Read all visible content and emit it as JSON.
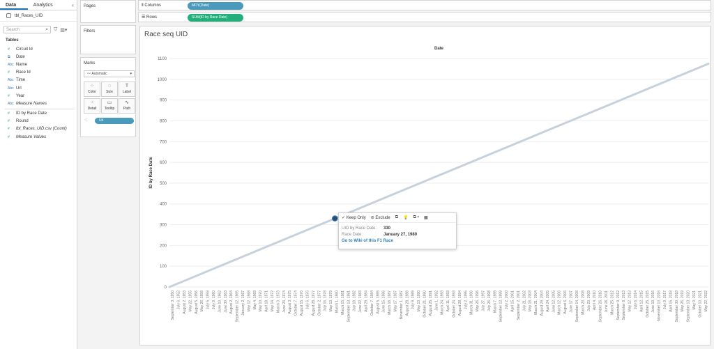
{
  "left_pane": {
    "tabs": [
      "Data",
      "Analytics"
    ],
    "collapse_glyph": "‹",
    "datasource": "tbl_Races_UID",
    "search_placeholder": "Search",
    "tables_heading": "Tables",
    "fields": [
      {
        "type": "#",
        "name": "Circuit Id",
        "italic": false
      },
      {
        "type": "⧉",
        "name": "Date",
        "italic": false
      },
      {
        "type": "Abc",
        "name": "Name",
        "italic": false
      },
      {
        "type": "#",
        "name": "Race Id",
        "italic": false
      },
      {
        "type": "Abc",
        "name": "Time",
        "italic": false
      },
      {
        "type": "Abc",
        "name": "Url",
        "italic": false
      },
      {
        "type": "#",
        "name": "Year",
        "italic": false
      },
      {
        "type": "Abc",
        "name": "Measure Names",
        "italic": true
      }
    ],
    "measures": [
      {
        "type": "#",
        "name": "ID by Race Date",
        "italic": false
      },
      {
        "type": "#",
        "name": "Round",
        "italic": false
      },
      {
        "type": "#",
        "name": "tbl_Races_UID.csv (Count)",
        "italic": true
      },
      {
        "type": "#",
        "name": "Measure Values",
        "italic": true
      }
    ]
  },
  "cards": {
    "pages": "Pages",
    "filters": "Filters",
    "marks": "Marks",
    "mark_type": "Automatic",
    "buttons": [
      "Color",
      "Size",
      "Label",
      "Detail",
      "Tooltip",
      "Path"
    ],
    "url_pill": "Url"
  },
  "shelves": {
    "columns_label": "Columns",
    "columns_pill": "MDY(Date)",
    "rows_label": "Rows",
    "rows_pill": "SUM(ID by Race Date)"
  },
  "view": {
    "title": "Race seq UID"
  },
  "tooltip": {
    "actions": [
      "✓ Keep Only",
      "⊘ Exclude",
      "⧉",
      "💡",
      "⧉ ▾",
      "▦"
    ],
    "field1_key": "UID by Race Date:",
    "field1_val": "330",
    "field2_key": "Race Date:",
    "field2_val": "January 27, 1980",
    "link": "Go to Wiki of this F1 Race"
  },
  "chart_data": {
    "type": "line",
    "title": "Date",
    "ylabel": "ID by Race Date",
    "xlabel": "",
    "y_ticks": [
      0,
      100,
      200,
      300,
      400,
      500,
      600,
      700,
      800,
      900,
      1000,
      1100
    ],
    "ylim": [
      0,
      1100
    ],
    "series": [
      {
        "values_x_index": [
          0,
          99
        ],
        "values_y": [
          0,
          1075
        ]
      }
    ],
    "x_tick_labels": [
      "September 3, 1950",
      "July 6, 1952",
      "August 2, 1953",
      "May 22, 1955",
      "August 5, 1956",
      "May 26, 1958",
      "July 5, 1959",
      "July 9, 1960",
      "June 10, 1962",
      "June 30, 1963",
      "August 2, 1964",
      "September 12, 1965",
      "January 2, 1967",
      "May 12, 1968",
      "May 4, 1969",
      "May 10, 1970",
      "April 18, 1971",
      "May 14, 1972",
      "March 3, 1973",
      "June 23, 1974",
      "August 3, 1975",
      "October 7, 1974",
      "August 15, 1976",
      "July 6, 1976",
      "August 28, 1977",
      "October 2, 1977",
      "July 16, 1978",
      "May 13, 1979",
      "March 1, 1980",
      "March 15, 1981",
      "September 13, 1981",
      "July 18, 1982",
      "June 22, 1983",
      "April 29, 1984",
      "October 7, 1984",
      "August 5, 1985",
      "June 15, 1986",
      "March 18, 1987",
      "May 17, 1987",
      "November 1, 1987",
      "August 28, 1988",
      "July 9, 1989",
      "May 13, 1990",
      "October 21, 1990",
      "August 25, 1991",
      "June 1, 1992",
      "March 24, 1993",
      "April 11, 1993",
      "October 24, 1993",
      "August 28, 1994",
      "July 2, 1995",
      "March 31, 1996",
      "May 26, 1996",
      "July 27, 1997",
      "July 26, 1998",
      "March 7, 1999",
      "September 12, 1999",
      "July 2, 2000",
      "April 15, 2001",
      "September 2, 2001",
      "July 21, 2002",
      "May 18, 2003",
      "March 21, 2004",
      "August 29, 2004",
      "April 24, 2005",
      "June 12, 2005",
      "March 12, 2006",
      "August 6, 2006",
      "June 17, 2007",
      "September 14, 2008",
      "March 23, 2008",
      "July 23, 2009",
      "April 4, 2010",
      "September 26, 2010",
      "June 26, 2011",
      "March 25, 2012",
      "September 9, 2012",
      "September 8, 2013",
      "May 12, 2013",
      "July 6, 2014",
      "April 12, 2015",
      "October 25, 2015",
      "June 19, 2016",
      "November 13, 2016",
      "July 9, 2017",
      "April 15, 2018",
      "September 30, 2018",
      "May 26, 2019",
      "September 13, 2020",
      "May 9, 2021",
      "October 10, 2021",
      "May 22, 2022"
    ]
  }
}
